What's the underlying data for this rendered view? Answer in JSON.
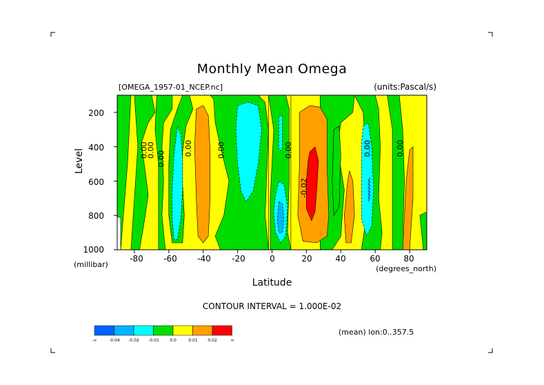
{
  "chart_data": {
    "type": "heatmap",
    "title": "Monthly Mean Omega",
    "file_label": "[OMEGA_1957-01_NCEP.nc]",
    "units_label": "(units:Pascal/s)",
    "xlabel": "Latitude",
    "xunit": "(degrees_north)",
    "ylabel": "Level",
    "yunit": "(millibar)",
    "x_ticks": [
      "-80",
      "-60",
      "-40",
      "-20",
      "0",
      "20",
      "40",
      "60",
      "80"
    ],
    "y_ticks": [
      "200",
      "400",
      "600",
      "800",
      "1000"
    ],
    "xlim": [
      -90,
      90
    ],
    "ylim": [
      100,
      1000
    ],
    "y_inverted": true,
    "contour_interval_label": "CONTOUR INTERVAL = 1.000E-02",
    "footer_label": "(mean) lon:0..357.5",
    "contour_labels": [
      {
        "text": "0.00",
        "x": -73,
        "y": 420
      },
      {
        "text": "0.00",
        "x": -69,
        "y": 420
      },
      {
        "text": "0.00",
        "x": -63,
        "y": 470
      },
      {
        "text": "0.00",
        "x": -47,
        "y": 410
      },
      {
        "text": "0.00",
        "x": -28,
        "y": 420
      },
      {
        "text": "0.00",
        "x": 11,
        "y": 420
      },
      {
        "text": "-0.02",
        "x": 20,
        "y": 640
      },
      {
        "text": "0.00",
        "x": 57,
        "y": 410
      },
      {
        "text": "0.00",
        "x": 76,
        "y": 410
      }
    ],
    "colorbar": {
      "levels": [
        "-∞",
        "-0.04",
        "-0.02",
        "-0.01",
        "0.0",
        "0.01",
        "0.02",
        "∞"
      ],
      "colors": [
        "#0064ff",
        "#00b4ff",
        "#00ffff",
        "#00dc00",
        "#ffff00",
        "#ffa000",
        "#ff0000"
      ]
    },
    "fill": {
      "background_color": "#ffff00",
      "regions": [
        {
          "color": "#00dc00",
          "points": [
            [
              -90,
              100
            ],
            [
              -82,
              100
            ],
            [
              -84,
              500
            ],
            [
              -88,
              1000
            ],
            [
              -90,
              1000
            ]
          ]
        },
        {
          "color": "#ffffff",
          "points": [
            [
              -90,
              810
            ],
            [
              -88,
              810
            ],
            [
              -88,
              1000
            ],
            [
              -90,
              1000
            ]
          ]
        },
        {
          "color": "#00dc00",
          "points": [
            [
              -80,
              100
            ],
            [
              -70,
              100
            ],
            [
              -68,
              200
            ],
            [
              -72,
              260
            ],
            [
              -76,
              380
            ],
            [
              -74,
              520
            ],
            [
              -72,
              680
            ],
            [
              -74,
              820
            ],
            [
              -77,
              1000
            ],
            [
              -82,
              1000
            ],
            [
              -80,
              700
            ],
            [
              -78,
              400
            ]
          ]
        },
        {
          "color": "#00dc00",
          "points": [
            [
              -67,
              100
            ],
            [
              -58,
              100
            ],
            [
              -58,
              180
            ],
            [
              -63,
              260
            ],
            [
              -64,
              400
            ],
            [
              -63,
              600
            ],
            [
              -64,
              800
            ],
            [
              -62,
              1000
            ],
            [
              -66,
              1000
            ],
            [
              -66,
              500
            ],
            [
              -68,
              300
            ]
          ]
        },
        {
          "color": "#00dc00",
          "points": [
            [
              -52,
              100
            ],
            [
              -48,
              100
            ],
            [
              -46,
              180
            ],
            [
              -50,
              280
            ],
            [
              -52,
              430
            ],
            [
              -52,
              620
            ],
            [
              -51,
              800
            ],
            [
              -52,
              960
            ],
            [
              -58,
              960
            ],
            [
              -60,
              800
            ],
            [
              -60,
              500
            ],
            [
              -59,
              300
            ],
            [
              -55,
              180
            ]
          ]
        },
        {
          "color": "#00ffff",
          "points": [
            [
              -55,
              280
            ],
            [
              -53,
              330
            ],
            [
              -52,
              470
            ],
            [
              -52,
              650
            ],
            [
              -53,
              820
            ],
            [
              -55,
              940
            ],
            [
              -57,
              940
            ],
            [
              -58,
              820
            ],
            [
              -58,
              650
            ],
            [
              -57,
              450
            ]
          ]
        },
        {
          "color": "#00dc00",
          "points": [
            [
              -36,
              100
            ],
            [
              -8,
              100
            ],
            [
              -4,
              140
            ],
            [
              -2,
              300
            ],
            [
              -4,
              800
            ],
            [
              -2,
              1000
            ],
            [
              -30,
              1000
            ],
            [
              -33,
              920
            ],
            [
              -28,
              800
            ],
            [
              -25,
              600
            ],
            [
              -30,
              400
            ],
            [
              -33,
              260
            ],
            [
              -34,
              120
            ]
          ]
        },
        {
          "color": "#ffa000",
          "points": [
            [
              -44,
              180
            ],
            [
              -40,
              160
            ],
            [
              -37,
              220
            ],
            [
              -36,
              420
            ],
            [
              -36,
              700
            ],
            [
              -37,
              920
            ],
            [
              -40,
              960
            ],
            [
              -43,
              920
            ],
            [
              -44,
              700
            ],
            [
              -45,
              400
            ]
          ]
        },
        {
          "color": "#00ffff",
          "points": [
            [
              -20,
              160
            ],
            [
              -14,
              140
            ],
            [
              -8,
              160
            ],
            [
              -6,
              300
            ],
            [
              -8,
              500
            ],
            [
              -11,
              660
            ],
            [
              -15,
              720
            ],
            [
              -18,
              660
            ],
            [
              -20,
              500
            ],
            [
              -21,
              300
            ]
          ]
        },
        {
          "color": "#ffff00",
          "points": [
            [
              -2,
              100
            ],
            [
              11,
              100
            ],
            [
              11,
              1000
            ],
            [
              -2,
              1000
            ]
          ]
        },
        {
          "color": "#00dc00",
          "points": [
            [
              -2,
              100
            ],
            [
              8,
              100
            ],
            [
              10,
              180
            ],
            [
              10,
              600
            ],
            [
              9,
              900
            ],
            [
              11,
              1000
            ],
            [
              -1,
              1000
            ],
            [
              -1,
              700
            ],
            [
              1,
              300
            ]
          ]
        },
        {
          "color": "#00ffff",
          "points": [
            [
              4,
              220
            ],
            [
              6,
              220
            ],
            [
              6,
              420
            ],
            [
              4,
              420
            ]
          ]
        },
        {
          "color": "#00ffff",
          "points": [
            [
              4,
              600
            ],
            [
              7,
              620
            ],
            [
              9,
              750
            ],
            [
              8,
              920
            ],
            [
              5,
              960
            ],
            [
              2,
              900
            ],
            [
              1,
              780
            ],
            [
              2,
              680
            ]
          ]
        },
        {
          "color": "#00b4ff",
          "points": [
            [
              4,
              720
            ],
            [
              6,
              730
            ],
            [
              7,
              820
            ],
            [
              6,
              900
            ],
            [
              4,
              900
            ],
            [
              3,
              820
            ]
          ]
        },
        {
          "color": "#00dc00",
          "points": [
            [
              28,
              100
            ],
            [
              48,
              100
            ],
            [
              47,
              200
            ],
            [
              40,
              260
            ],
            [
              38,
              400
            ],
            [
              42,
              650
            ],
            [
              40,
              920
            ],
            [
              35,
              1000
            ],
            [
              28,
              1000
            ]
          ]
        },
        {
          "color": "#ffa000",
          "points": [
            [
              16,
              200
            ],
            [
              22,
              160
            ],
            [
              28,
              170
            ],
            [
              32,
              240
            ],
            [
              32,
              500
            ],
            [
              33,
              800
            ],
            [
              32,
              920
            ],
            [
              26,
              960
            ],
            [
              18,
              950
            ],
            [
              15,
              800
            ],
            [
              16,
              500
            ]
          ]
        },
        {
          "color": "#ff0000",
          "points": [
            [
              22,
              430
            ],
            [
              25,
              400
            ],
            [
              27,
              480
            ],
            [
              26,
              650
            ],
            [
              25,
              780
            ],
            [
              23,
              830
            ],
            [
              20,
              760
            ],
            [
              20,
              600
            ],
            [
              21,
              480
            ]
          ]
        },
        {
          "color": "#00dc00",
          "points": [
            [
              36,
              300
            ],
            [
              39,
              280
            ],
            [
              40,
              450
            ],
            [
              39,
              750
            ],
            [
              36,
              800
            ],
            [
              35,
              600
            ]
          ]
        },
        {
          "color": "#00dc00",
          "points": [
            [
              48,
              100
            ],
            [
              60,
              100
            ],
            [
              62,
              180
            ],
            [
              63,
              400
            ],
            [
              62,
              700
            ],
            [
              64,
              900
            ],
            [
              63,
              1000
            ],
            [
              52,
              1000
            ],
            [
              55,
              800
            ],
            [
              55,
              500
            ],
            [
              53,
              200
            ]
          ]
        },
        {
          "color": "#ffa000",
          "points": [
            [
              44,
              600
            ],
            [
              45,
              540
            ],
            [
              47,
              600
            ],
            [
              48,
              800
            ],
            [
              46,
              960
            ],
            [
              43,
              960
            ],
            [
              42,
              800
            ]
          ]
        },
        {
          "color": "#00ffff",
          "points": [
            [
              53,
              280
            ],
            [
              56,
              260
            ],
            [
              58,
              400
            ],
            [
              59,
              650
            ],
            [
              58,
              860
            ],
            [
              55,
              920
            ],
            [
              52,
              820
            ],
            [
              52,
              600
            ],
            [
              52,
              380
            ]
          ]
        },
        {
          "color": "#00b4ff",
          "points": [
            [
              56,
              600
            ],
            [
              57,
              580
            ],
            [
              57,
              700
            ],
            [
              56,
              720
            ]
          ]
        },
        {
          "color": "#00dc00",
          "points": [
            [
              67,
              100
            ],
            [
              74,
              100
            ],
            [
              76,
              300
            ],
            [
              77,
              600
            ],
            [
              76,
              900
            ],
            [
              80,
              1000
            ],
            [
              70,
              1000
            ],
            [
              70,
              700
            ],
            [
              70,
              300
            ]
          ]
        },
        {
          "color": "#ffa000",
          "points": [
            [
              80,
              420
            ],
            [
              82,
              400
            ],
            [
              82,
              700
            ],
            [
              80,
              1000
            ],
            [
              76,
              1000
            ],
            [
              77,
              800
            ],
            [
              78,
              600
            ]
          ]
        },
        {
          "color": "#00dc00",
          "points": [
            [
              86,
              800
            ],
            [
              90,
              780
            ],
            [
              90,
              1000
            ],
            [
              88,
              1000
            ]
          ]
        }
      ]
    }
  }
}
